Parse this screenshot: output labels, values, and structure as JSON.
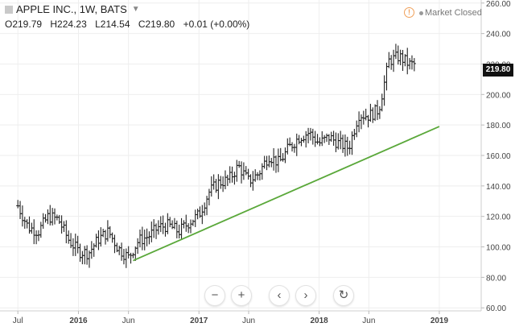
{
  "header": {
    "title": "APPLE INC., 1W, BATS",
    "ohlc": {
      "open": "O219.79",
      "high": "H224.23",
      "low": "L214.54",
      "close": "C219.80",
      "change": "+0.01 (+0.00%)"
    }
  },
  "status": {
    "market": "Market Closed"
  },
  "last_price": "219.80",
  "controls": {
    "zoom_out": "−",
    "zoom_in": "+",
    "prev": "‹",
    "next": "›",
    "reset": "↻"
  },
  "icons": [
    "app-icon",
    "chevron-down-icon",
    "warning-icon",
    "status-dot-icon",
    "zoom-out-icon",
    "zoom-in-icon",
    "scroll-left-icon",
    "scroll-right-icon",
    "reset-icon"
  ],
  "colors": {
    "bars": "#222222",
    "trendline": "#5aa83a",
    "grid": "#eeeeee",
    "price_tag": "#111111"
  },
  "chart_data": {
    "type": "ohlc",
    "y_axis": {
      "ticks": [
        "60.00",
        "80.00",
        "100.00",
        "120.00",
        "140.00",
        "160.00",
        "180.00",
        "200.00",
        "220.00",
        "240.00",
        "260.00"
      ],
      "range": [
        58,
        262
      ],
      "position": "right"
    },
    "x_axis": {
      "labels": [
        "Jul",
        "2016",
        "Jun",
        "2017",
        "Jun",
        "2018",
        "Jun",
        "2019"
      ]
    },
    "grid": true,
    "series": {
      "dates": [
        "2015-07-01",
        "2015-08-01",
        "2015-09-01",
        "2015-10-01",
        "2015-11-01",
        "2015-12-01",
        "2016-01-01",
        "2016-02-01",
        "2016-03-01",
        "2016-04-01",
        "2016-05-01",
        "2016-06-01",
        "2016-07-01",
        "2016-08-01",
        "2016-09-01",
        "2016-10-01",
        "2016-11-01",
        "2016-12-01",
        "2017-01-01",
        "2017-02-01",
        "2017-03-01",
        "2017-04-01",
        "2017-05-01",
        "2017-06-01",
        "2017-07-01",
        "2017-08-01",
        "2017-09-01",
        "2017-10-01",
        "2017-11-01",
        "2017-12-01",
        "2018-01-01",
        "2018-02-01",
        "2018-03-01",
        "2018-04-01",
        "2018-05-01",
        "2018-06-01",
        "2018-07-01",
        "2018-08-01",
        "2018-09-01",
        "2018-10-01"
      ],
      "close": [
        127,
        113,
        110,
        120,
        118,
        105,
        97,
        96,
        105,
        110,
        99,
        93,
        104,
        107,
        113,
        114,
        110,
        116,
        121,
        136,
        142,
        144,
        153,
        143,
        148,
        160,
        155,
        165,
        172,
        175,
        168,
        172,
        168,
        165,
        187,
        186,
        190,
        222,
        225,
        219.8
      ]
    },
    "trendline": {
      "from": {
        "date": "2016-06-15",
        "value": 91
      },
      "to": {
        "date": "2019-01-01",
        "value": 179
      }
    }
  }
}
